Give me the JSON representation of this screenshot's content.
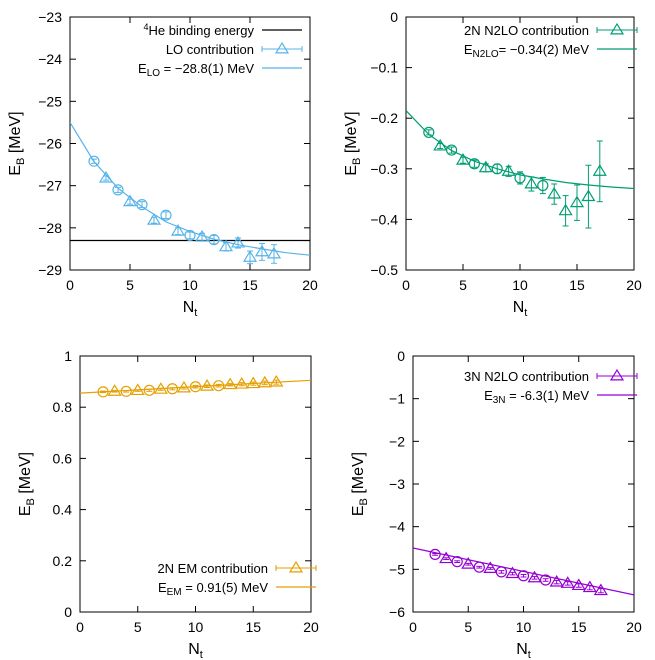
{
  "charts": [
    {
      "id": "lo",
      "color": "#56b4e9",
      "xlim": [
        0,
        20
      ],
      "ylim": [
        -29,
        -23
      ],
      "xticks": [
        "0",
        "5",
        "10",
        "15",
        "20"
      ],
      "yticks": [
        "-23",
        "-24",
        "-25",
        "-26",
        "-27",
        "-28",
        "-29"
      ],
      "ylabel": "E",
      "ylabel_sub": "B",
      "ylabel_unit": " [MeV]",
      "xlabel": "N",
      "xlabel_sub": "t",
      "legend": {
        "ref_pre": "4",
        "ref_text": "He binding energy",
        "points": "LO contribution",
        "fit_pre": "E",
        "fit_sub": "LO",
        "fit_text": " = −28.8(1) MeV"
      }
    },
    {
      "id": "n2lo",
      "color": "#009e73",
      "xlim": [
        0,
        20
      ],
      "ylim": [
        -0.5,
        0
      ],
      "xticks": [
        "0",
        "5",
        "10",
        "15",
        "20"
      ],
      "yticks": [
        "0",
        "-0.1",
        "-0.2",
        "-0.3",
        "-0.4",
        "-0.5"
      ],
      "ylabel": "E",
      "ylabel_sub": "B",
      "ylabel_unit": " [MeV]",
      "xlabel": "N",
      "xlabel_sub": "t",
      "legend": {
        "points": "2N N2LO contribution",
        "fit_pre": "E",
        "fit_sub": "N2LO",
        "fit_text": "= −0.34(2) MeV"
      }
    },
    {
      "id": "em",
      "color": "#e69f00",
      "xlim": [
        0,
        20
      ],
      "ylim": [
        0,
        1
      ],
      "xticks": [
        "0",
        "5",
        "10",
        "15",
        "20"
      ],
      "yticks": [
        "1",
        "0.8",
        "0.6",
        "0.4",
        "0.2",
        "0"
      ],
      "ylabel": "E",
      "ylabel_sub": "B",
      "ylabel_unit": " [MeV]",
      "xlabel": "N",
      "xlabel_sub": "t",
      "legend": {
        "points": "2N EM contribution",
        "fit_pre": "E",
        "fit_sub": "EM",
        "fit_text": " = 0.91(5) MeV"
      }
    },
    {
      "id": "3n",
      "color": "#9400d3",
      "xlim": [
        0,
        20
      ],
      "ylim": [
        -6,
        0
      ],
      "xticks": [
        "0",
        "5",
        "10",
        "15",
        "20"
      ],
      "yticks": [
        "0",
        "-1",
        "-2",
        "-3",
        "-4",
        "-5",
        "-6"
      ],
      "ylabel": "E",
      "ylabel_sub": "B",
      "ylabel_unit": " [MeV]",
      "xlabel": "N",
      "xlabel_sub": "t",
      "legend": {
        "points": "3N N2LO contribution",
        "fit_pre": "E",
        "fit_sub": "3N",
        "fit_text": " = -6.3(1) MeV"
      }
    }
  ],
  "chart_data": [
    {
      "type": "scatter",
      "xlabel": "Nt",
      "ylabel": "EB [MeV]",
      "xlim": [
        0,
        20
      ],
      "ylim": [
        -29,
        -23
      ],
      "reference_line": {
        "name": "4He binding energy",
        "y": -28.3
      },
      "series": [
        {
          "name": "LO contribution",
          "x": [
            2,
            3,
            4,
            5,
            6,
            7,
            8,
            9,
            10,
            11,
            12,
            13,
            14,
            15,
            16,
            17
          ],
          "y": [
            -26.42,
            -26.82,
            -27.1,
            -27.38,
            -27.45,
            -27.82,
            -27.7,
            -28.08,
            -28.18,
            -28.22,
            -28.28,
            -28.45,
            -28.36,
            -28.7,
            -28.57,
            -28.62
          ],
          "err": [
            0.05,
            0.05,
            0.06,
            0.06,
            0.07,
            0.07,
            0.08,
            0.08,
            0.08,
            0.09,
            0.1,
            0.1,
            0.12,
            0.15,
            0.2,
            0.22
          ],
          "markers": [
            "circle",
            "triangle",
            "circle",
            "triangle",
            "circle",
            "triangle",
            "circle",
            "triangle",
            "circle",
            "triangle",
            "circle",
            "triangle",
            "triangle",
            "triangle",
            "triangle",
            "triangle"
          ]
        },
        {
          "name": "E_LO = -28.8(1) MeV",
          "kind": "fit",
          "x": [
            0,
            2,
            4,
            6,
            8,
            10,
            12,
            14,
            16,
            18,
            20
          ],
          "y": [
            -25.5,
            -26.43,
            -27.06,
            -27.5,
            -27.86,
            -28.09,
            -28.27,
            -28.4,
            -28.5,
            -28.59,
            -28.65
          ]
        }
      ]
    },
    {
      "type": "scatter",
      "xlabel": "Nt",
      "ylabel": "EB [MeV]",
      "xlim": [
        0,
        20
      ],
      "ylim": [
        -0.5,
        0
      ],
      "series": [
        {
          "name": "2N N2LO contribution",
          "x": [
            2,
            3,
            4,
            5,
            6,
            7,
            8,
            9,
            10,
            11,
            12,
            13,
            14,
            15,
            16,
            17
          ],
          "y": [
            -0.228,
            -0.255,
            -0.263,
            -0.283,
            -0.29,
            -0.298,
            -0.3,
            -0.305,
            -0.318,
            -0.33,
            -0.333,
            -0.35,
            -0.383,
            -0.367,
            -0.355,
            -0.305
          ],
          "err": [
            0.005,
            0.005,
            0.006,
            0.006,
            0.007,
            0.008,
            0.009,
            0.01,
            0.012,
            0.014,
            0.016,
            0.02,
            0.03,
            0.035,
            0.062,
            0.06
          ],
          "markers": [
            "circle",
            "triangle",
            "circle",
            "triangle",
            "circle",
            "triangle",
            "circle",
            "triangle",
            "circle",
            "triangle",
            "circle",
            "triangle",
            "triangle",
            "triangle",
            "triangle",
            "triangle"
          ]
        },
        {
          "name": "E_N2LO = -0.34(2) MeV",
          "kind": "fit",
          "x": [
            0,
            2,
            4,
            6,
            8,
            10,
            12,
            14,
            16,
            18,
            20
          ],
          "y": [
            -0.185,
            -0.232,
            -0.264,
            -0.285,
            -0.3,
            -0.312,
            -0.32,
            -0.327,
            -0.332,
            -0.336,
            -0.339
          ]
        }
      ]
    },
    {
      "type": "scatter",
      "xlabel": "Nt",
      "ylabel": "EB [MeV]",
      "xlim": [
        0,
        20
      ],
      "ylim": [
        0,
        1
      ],
      "series": [
        {
          "name": "2N EM contribution",
          "x": [
            2,
            3,
            4,
            5,
            6,
            7,
            8,
            9,
            10,
            11,
            12,
            13,
            14,
            15,
            16,
            17
          ],
          "y": [
            0.86,
            0.862,
            0.862,
            0.865,
            0.866,
            0.87,
            0.872,
            0.875,
            0.88,
            0.882,
            0.884,
            0.888,
            0.89,
            0.892,
            0.895,
            0.898
          ],
          "err": [
            0.003,
            0.003,
            0.003,
            0.003,
            0.004,
            0.004,
            0.004,
            0.004,
            0.005,
            0.005,
            0.005,
            0.005,
            0.006,
            0.006,
            0.007,
            0.008
          ],
          "markers": [
            "circle",
            "triangle",
            "circle",
            "triangle",
            "circle",
            "triangle",
            "circle",
            "triangle",
            "circle",
            "triangle",
            "circle",
            "triangle",
            "triangle",
            "triangle",
            "triangle",
            "triangle"
          ]
        },
        {
          "name": "E_EM = 0.91(5) MeV",
          "kind": "fit",
          "x": [
            0,
            20
          ],
          "y": [
            0.855,
            0.905
          ]
        }
      ]
    },
    {
      "type": "scatter",
      "xlabel": "Nt",
      "ylabel": "EB [MeV]",
      "xlim": [
        0,
        20
      ],
      "ylim": [
        -6,
        0
      ],
      "series": [
        {
          "name": "3N N2LO contribution",
          "x": [
            2,
            3,
            4,
            5,
            6,
            7,
            8,
            9,
            10,
            11,
            12,
            13,
            14,
            15,
            16,
            17
          ],
          "y": [
            -4.65,
            -4.75,
            -4.82,
            -4.88,
            -4.95,
            -4.98,
            -5.06,
            -5.1,
            -5.15,
            -5.2,
            -5.25,
            -5.3,
            -5.33,
            -5.38,
            -5.43,
            -5.5
          ],
          "err": [
            0.02,
            0.02,
            0.02,
            0.02,
            0.02,
            0.02,
            0.03,
            0.03,
            0.03,
            0.03,
            0.03,
            0.04,
            0.04,
            0.04,
            0.05,
            0.05
          ],
          "markers": [
            "circle",
            "triangle",
            "circle",
            "triangle",
            "circle",
            "triangle",
            "circle",
            "triangle",
            "circle",
            "triangle",
            "circle",
            "triangle",
            "triangle",
            "triangle",
            "triangle",
            "triangle"
          ]
        },
        {
          "name": "E_3N = -6.3(1) MeV",
          "kind": "fit",
          "x": [
            0,
            20
          ],
          "y": [
            -4.5,
            -5.6
          ]
        }
      ]
    }
  ]
}
